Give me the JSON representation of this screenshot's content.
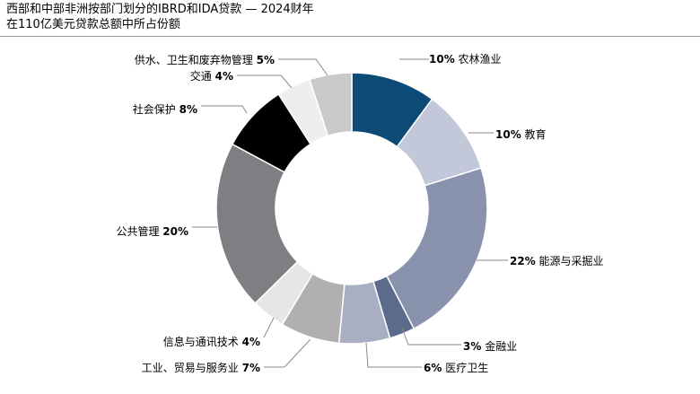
{
  "chart_data": {
    "type": "pie",
    "donut": true,
    "title": "西部和中部非洲按部门划分的IBRD和IDA贷款 — 2024财年",
    "subtitle": "在110亿美元贷款总额中所占份额",
    "unit": "%",
    "slices": [
      {
        "label": "农林渔业",
        "pct_text": "10%",
        "value": 10,
        "color": "#0d4a76"
      },
      {
        "label": "教育",
        "pct_text": "10%",
        "value": 10,
        "color": "#c2c7da"
      },
      {
        "label": "能源与采掘业",
        "pct_text": "22%",
        "value": 22,
        "color": "#8892ad"
      },
      {
        "label": "金融业",
        "pct_text": "3%",
        "value": 3,
        "color": "#5c6b8c"
      },
      {
        "label": "医疗卫生",
        "pct_text": "6%",
        "value": 6,
        "color": "#a9afc3"
      },
      {
        "label": "工业、贸易与服务业",
        "pct_text": "7%",
        "value": 7,
        "color": "#b0b0b0"
      },
      {
        "label": "信息与通讯技术",
        "pct_text": "4%",
        "value": 4,
        "color": "#e6e6e6"
      },
      {
        "label": "公共管理",
        "pct_text": "20%",
        "value": 20,
        "color": "#7d7f83"
      },
      {
        "label": "社会保护",
        "pct_text": "8%",
        "value": 8,
        "color": "#000000"
      },
      {
        "label": "交通",
        "pct_text": "4%",
        "value": 4,
        "color": "#eeeeee"
      },
      {
        "label": "供水、卫生和废弃物管理",
        "pct_text": "5%",
        "value": 5,
        "color": "#c8c9cb"
      }
    ]
  }
}
